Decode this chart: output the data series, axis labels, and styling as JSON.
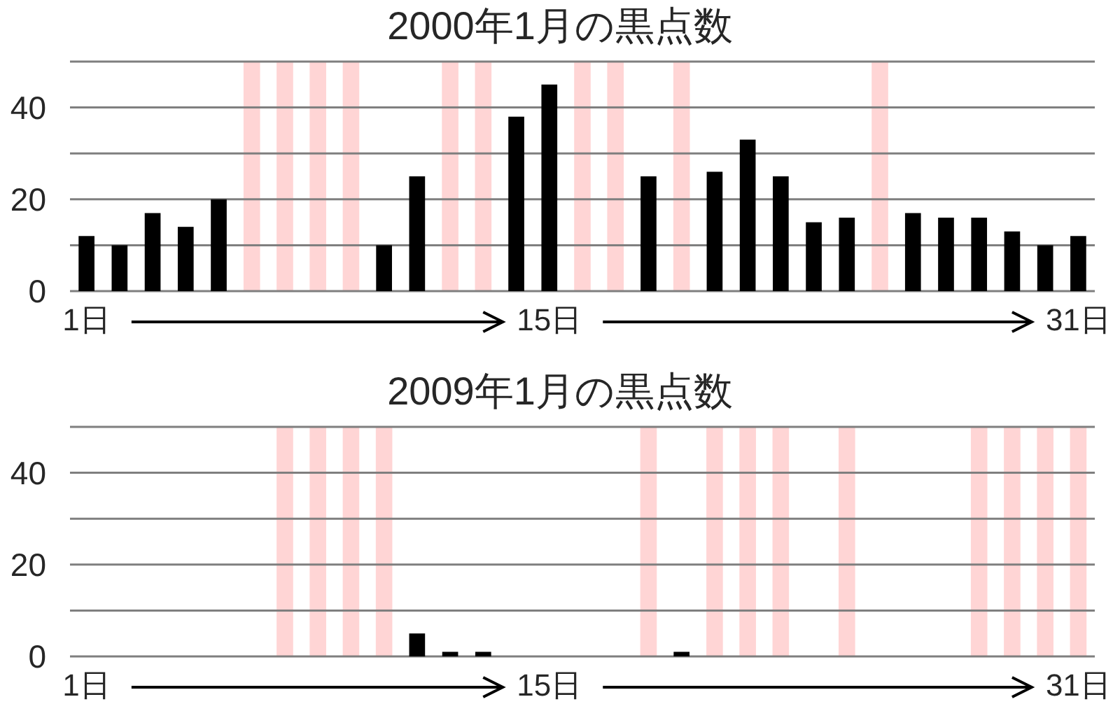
{
  "chart_data": [
    {
      "type": "bar",
      "title": "2000年1月の黒点数",
      "x": [
        1,
        2,
        3,
        4,
        5,
        10,
        11,
        14,
        15,
        18,
        20,
        21,
        22,
        23,
        24,
        26,
        27,
        28,
        29,
        30,
        31
      ],
      "values": [
        12,
        10,
        17,
        14,
        20,
        10,
        25,
        38,
        45,
        25,
        26,
        33,
        25,
        15,
        16,
        17,
        16,
        16,
        13,
        10,
        12
      ],
      "color": "#000000",
      "xlim": [
        0.5,
        31.5
      ],
      "xticks": [
        {
          "value": 1,
          "label": "1日"
        },
        {
          "value": 15,
          "label": "15日"
        },
        {
          "value": 31,
          "label": "31日"
        }
      ],
      "ylim": [
        0,
        50
      ],
      "yticks": [
        0,
        {
          "value": 10,
          "label": null
        },
        20,
        {
          "value": 30,
          "label": null
        },
        40,
        {
          "value": 50,
          "label": null
        }
      ],
      "grid": "y",
      "bands": [
        {
          "axis": "x",
          "from": 5.75,
          "to": 6.25,
          "color": "#ffd5d5"
        },
        {
          "axis": "x",
          "from": 6.75,
          "to": 7.25,
          "color": "#ffd5d5"
        },
        {
          "axis": "x",
          "from": 7.75,
          "to": 8.25,
          "color": "#ffd5d5"
        },
        {
          "axis": "x",
          "from": 8.75,
          "to": 9.25,
          "color": "#ffd5d5"
        },
        {
          "axis": "x",
          "from": 11.75,
          "to": 12.25,
          "color": "#ffd5d5"
        },
        {
          "axis": "x",
          "from": 12.75,
          "to": 13.25,
          "color": "#ffd5d5"
        },
        {
          "axis": "x",
          "from": 15.75,
          "to": 16.25,
          "color": "#ffd5d5"
        },
        {
          "axis": "x",
          "from": 16.75,
          "to": 17.25,
          "color": "#ffd5d5"
        },
        {
          "axis": "x",
          "from": 18.75,
          "to": 19.25,
          "color": "#ffd5d5"
        },
        {
          "axis": "x",
          "from": 24.75,
          "to": 25.25,
          "color": "#ffd5d5"
        }
      ]
    },
    {
      "type": "bar",
      "title": "2009年1月の黒点数",
      "x": [
        1,
        2,
        3,
        4,
        5,
        6,
        11,
        12,
        13,
        14,
        15,
        16,
        17,
        19,
        23,
        25,
        26,
        27
      ],
      "values": [
        0,
        0,
        0,
        0,
        0,
        0,
        5,
        1,
        1,
        0,
        0,
        0,
        0,
        1,
        0,
        0,
        0,
        0
      ],
      "color": "#000000",
      "xlim": [
        0.5,
        31.5
      ],
      "xticks": [
        {
          "value": 1,
          "label": "1日"
        },
        {
          "value": 15,
          "label": "15日"
        },
        {
          "value": 31,
          "label": "31日"
        }
      ],
      "ylim": [
        0,
        50
      ],
      "yticks": [
        0,
        {
          "value": 10,
          "label": null
        },
        20,
        {
          "value": 30,
          "label": null
        },
        40,
        {
          "value": 50,
          "label": null
        }
      ],
      "grid": "y",
      "bands": [
        {
          "axis": "x",
          "from": 6.75,
          "to": 7.25,
          "color": "#ffd5d5"
        },
        {
          "axis": "x",
          "from": 7.75,
          "to": 8.25,
          "color": "#ffd5d5"
        },
        {
          "axis": "x",
          "from": 8.75,
          "to": 9.25,
          "color": "#ffd5d5"
        },
        {
          "axis": "x",
          "from": 9.75,
          "to": 10.25,
          "color": "#ffd5d5"
        },
        {
          "axis": "x",
          "from": 17.75,
          "to": 18.25,
          "color": "#ffd5d5"
        },
        {
          "axis": "x",
          "from": 19.75,
          "to": 20.25,
          "color": "#ffd5d5"
        },
        {
          "axis": "x",
          "from": 20.75,
          "to": 21.25,
          "color": "#ffd5d5"
        },
        {
          "axis": "x",
          "from": 21.75,
          "to": 22.25,
          "color": "#ffd5d5"
        },
        {
          "axis": "x",
          "from": 23.75,
          "to": 24.25,
          "color": "#ffd5d5"
        },
        {
          "axis": "x",
          "from": 27.75,
          "to": 28.25,
          "color": "#ffd5d5"
        },
        {
          "axis": "x",
          "from": 28.75,
          "to": 29.25,
          "color": "#ffd5d5"
        },
        {
          "axis": "x",
          "from": 29.75,
          "to": 30.25,
          "color": "#ffd5d5"
        },
        {
          "axis": "x",
          "from": 30.75,
          "to": 31.25,
          "color": "#ffd5d5"
        }
      ]
    }
  ]
}
